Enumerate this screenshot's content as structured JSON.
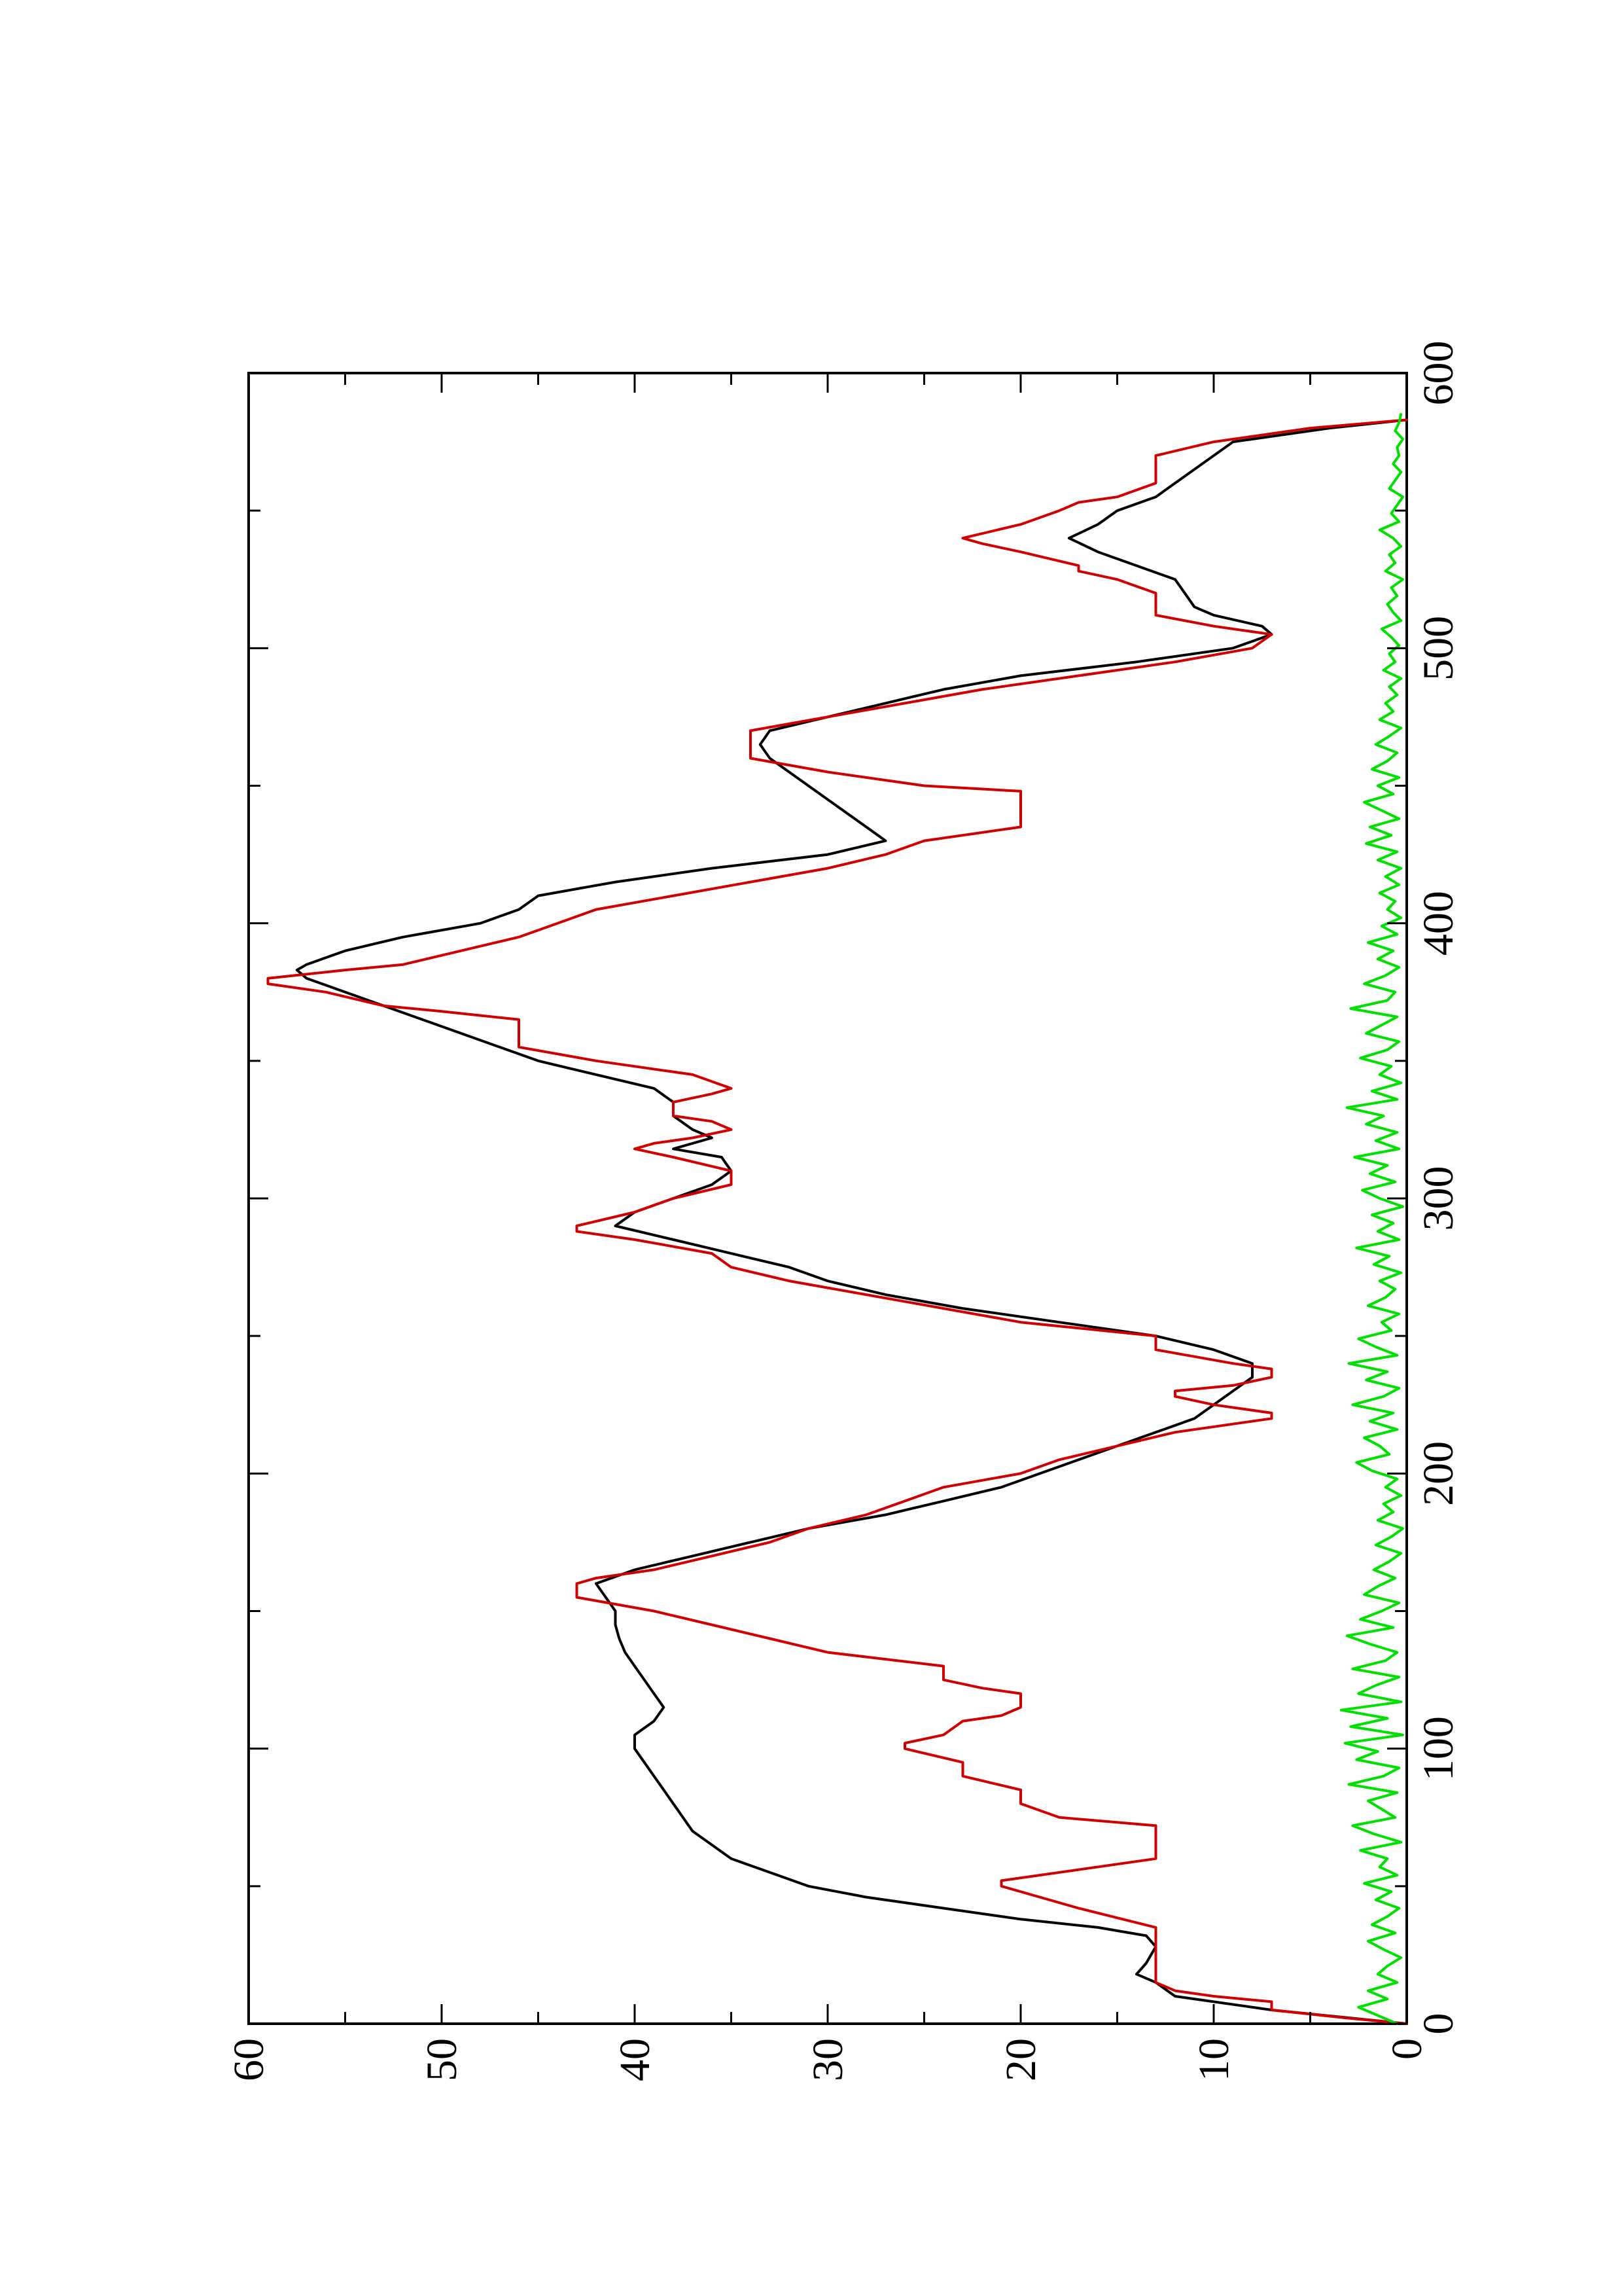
{
  "chart_data": {
    "type": "line",
    "title": "",
    "xlabel": "",
    "ylabel": "",
    "orientation": "rotated-90-ccw",
    "xlim": [
      0,
      600
    ],
    "ylim": [
      0,
      60
    ],
    "x_ticks": [
      0,
      100,
      200,
      300,
      400,
      500,
      600
    ],
    "y_ticks": [
      0,
      10,
      20,
      30,
      40,
      50,
      60
    ],
    "x_tick_labels": [
      "0",
      "100",
      "200",
      "300",
      "400",
      "500",
      "600"
    ],
    "y_tick_labels": [
      "0",
      "10",
      "20",
      "30",
      "40",
      "50",
      "60"
    ],
    "x_minor_ticks": [
      50,
      150,
      250,
      350,
      450,
      550
    ],
    "y_minor_ticks": [
      5,
      15,
      25,
      35,
      45,
      55
    ],
    "grid": false,
    "legend": "none",
    "series": [
      {
        "color": "#000000",
        "x": [
          0,
          5,
          10,
          15,
          18,
          22,
          28,
          32,
          35,
          38,
          42,
          46,
          50,
          55,
          60,
          65,
          70,
          75,
          80,
          85,
          90,
          95,
          100,
          105,
          110,
          115,
          120,
          125,
          130,
          135,
          140,
          145,
          150,
          155,
          160,
          165,
          170,
          175,
          180,
          185,
          190,
          195,
          200,
          205,
          210,
          215,
          220,
          225,
          230,
          235,
          240,
          245,
          250,
          255,
          260,
          265,
          270,
          275,
          280,
          285,
          290,
          295,
          300,
          305,
          310,
          315,
          318,
          322,
          325,
          330,
          335,
          340,
          345,
          350,
          355,
          360,
          365,
          370,
          375,
          380,
          383,
          385,
          390,
          395,
          400,
          405,
          410,
          415,
          420,
          425,
          430,
          435,
          440,
          445,
          450,
          455,
          460,
          465,
          470,
          475,
          480,
          485,
          490,
          495,
          500,
          505,
          508,
          512,
          515,
          520,
          525,
          530,
          535,
          540,
          545,
          550,
          555,
          560,
          565,
          570,
          575,
          580,
          583
        ],
        "values": [
          0,
          7,
          12,
          13,
          14,
          13.5,
          13,
          13.5,
          16,
          20,
          24,
          28,
          31,
          33,
          35,
          36,
          37,
          37.5,
          38,
          38.5,
          39,
          39.5,
          40,
          40,
          39,
          38.5,
          39,
          39.5,
          40,
          40.5,
          40.8,
          41,
          41,
          41.5,
          42,
          40,
          37,
          34,
          31,
          27,
          24,
          21,
          19,
          17,
          15,
          13,
          11,
          10,
          9,
          8,
          8,
          10,
          13,
          18,
          23,
          27,
          30,
          32,
          35,
          38,
          41,
          40,
          38,
          36,
          35,
          35.5,
          38,
          36,
          37,
          38,
          38,
          39,
          42,
          45,
          47,
          49,
          51,
          53,
          55,
          57,
          57.5,
          57,
          55,
          52,
          48,
          46,
          45,
          41,
          36,
          30,
          27,
          28,
          29,
          30,
          31,
          32,
          33,
          33.5,
          33,
          30,
          27,
          24,
          20,
          14,
          9,
          7,
          7.5,
          10,
          11,
          11.5,
          12,
          14,
          16,
          17.5,
          16,
          15,
          13,
          12,
          11,
          10,
          9,
          4,
          0
        ]
      },
      {
        "color": "#d10000",
        "x": [
          0,
          2,
          5,
          8,
          10,
          12,
          15,
          18,
          25,
          35,
          42,
          50,
          52,
          60,
          65,
          70,
          72,
          75,
          80,
          85,
          90,
          95,
          100,
          102,
          105,
          110,
          112,
          115,
          120,
          122,
          125,
          130,
          135,
          140,
          145,
          150,
          155,
          160,
          162,
          165,
          170,
          175,
          180,
          185,
          190,
          195,
          200,
          205,
          210,
          215,
          218,
          220,
          222,
          225,
          228,
          230,
          232,
          235,
          238,
          240,
          245,
          250,
          255,
          260,
          265,
          270,
          275,
          280,
          285,
          288,
          290,
          295,
          300,
          305,
          308,
          310,
          315,
          318,
          320,
          322,
          325,
          328,
          330,
          335,
          338,
          340,
          345,
          350,
          355,
          360,
          365,
          368,
          370,
          375,
          378,
          380,
          383,
          385,
          390,
          395,
          400,
          405,
          410,
          415,
          420,
          425,
          430,
          435,
          440,
          445,
          448,
          450,
          455,
          460,
          465,
          470,
          475,
          480,
          485,
          490,
          495,
          500,
          505,
          508,
          512,
          515,
          520,
          525,
          528,
          530,
          535,
          538,
          540,
          545,
          550,
          553,
          555,
          560,
          565,
          570,
          575,
          580,
          583
        ],
        "values": [
          0,
          3,
          7,
          7,
          10,
          12,
          13,
          13,
          13,
          13,
          17,
          21,
          21,
          13,
          13,
          13,
          13,
          18,
          20,
          20,
          23,
          23,
          26,
          26,
          24,
          23,
          21,
          20,
          20,
          22,
          24,
          24,
          30,
          33,
          36,
          39,
          43,
          43,
          42,
          39,
          36,
          33,
          31,
          28,
          26,
          24,
          20,
          18,
          15,
          12,
          9,
          7,
          7,
          10,
          12,
          12,
          9,
          7,
          7,
          9,
          13,
          13,
          20,
          24,
          28,
          32,
          35,
          36,
          40,
          43,
          43,
          40,
          38,
          35,
          35,
          35,
          38,
          40,
          39,
          37,
          35,
          36,
          38,
          38,
          36,
          35,
          37,
          42,
          46,
          46,
          46,
          50,
          53,
          56,
          59,
          59,
          55,
          52,
          49,
          46,
          44,
          42,
          38,
          34,
          30,
          27,
          25,
          20,
          20,
          20,
          20,
          25,
          30,
          34,
          34,
          34,
          30,
          26,
          22,
          17,
          12,
          8,
          7,
          10,
          13,
          13,
          13,
          15,
          17,
          17,
          20,
          22,
          23,
          20,
          18,
          17,
          15,
          13,
          13,
          13,
          10,
          5,
          0
        ]
      },
      {
        "color": "#00e000",
        "x": [
          0,
          3,
          6,
          9,
          12,
          15,
          18,
          21,
          24,
          27,
          30,
          33,
          36,
          39,
          42,
          45,
          48,
          51,
          54,
          57,
          60,
          63,
          66,
          69,
          72,
          75,
          78,
          81,
          84,
          87,
          90,
          93,
          96,
          99,
          102,
          105,
          108,
          111,
          114,
          117,
          120,
          123,
          126,
          129,
          132,
          135,
          138,
          141,
          144,
          147,
          150,
          153,
          156,
          159,
          162,
          165,
          168,
          171,
          174,
          177,
          180,
          183,
          186,
          189,
          192,
          195,
          198,
          201,
          204,
          207,
          210,
          213,
          216,
          219,
          222,
          225,
          228,
          231,
          234,
          237,
          240,
          243,
          246,
          249,
          252,
          255,
          258,
          261,
          264,
          267,
          270,
          273,
          276,
          279,
          282,
          285,
          288,
          291,
          294,
          297,
          300,
          303,
          306,
          309,
          312,
          315,
          318,
          321,
          324,
          327,
          330,
          333,
          336,
          339,
          342,
          345,
          348,
          351,
          354,
          357,
          360,
          363,
          366,
          369,
          372,
          375,
          378,
          381,
          384,
          387,
          390,
          393,
          396,
          399,
          402,
          405,
          408,
          411,
          414,
          417,
          420,
          423,
          426,
          429,
          432,
          435,
          438,
          441,
          444,
          447,
          450,
          453,
          456,
          459,
          462,
          465,
          468,
          471,
          474,
          477,
          480,
          483,
          486,
          489,
          492,
          495,
          498,
          501,
          504,
          507,
          510,
          513,
          516,
          519,
          522,
          525,
          528,
          531,
          534,
          537,
          540,
          543,
          546,
          549,
          552,
          555,
          558,
          561,
          564,
          567,
          570,
          573,
          576,
          579,
          582,
          585
        ],
        "values": [
          0.5,
          1.5,
          2.5,
          1,
          2,
          0.5,
          1.5,
          1,
          0.3,
          1.2,
          2,
          0.6,
          1.8,
          1,
          0.4,
          1.6,
          0.8,
          2.2,
          0.5,
          1.4,
          1,
          2.4,
          0.3,
          1.7,
          2.8,
          0.6,
          1.3,
          2,
          0.5,
          3,
          1.2,
          0.4,
          2.6,
          1.5,
          3.2,
          0.2,
          2.9,
          1,
          3.4,
          0.3,
          2.5,
          1.6,
          0.4,
          2.8,
          1.1,
          0.5,
          1.9,
          3.1,
          0.7,
          2.4,
          1.3,
          0.4,
          2.2,
          1.5,
          0.6,
          1.7,
          0.9,
          0.3,
          1.6,
          0.8,
          0.2,
          1.5,
          0.7,
          1.2,
          0.3,
          1.1,
          0.5,
          1.8,
          2.6,
          0.9,
          1.4,
          2.2,
          0.5,
          1.9,
          0.7,
          2.8,
          1.2,
          0.4,
          2.1,
          1,
          3,
          0.5,
          1.6,
          2.5,
          0.8,
          1.3,
          0.4,
          2,
          1.1,
          0.6,
          1.4,
          0.3,
          1.7,
          0.9,
          2.6,
          0.4,
          1.5,
          0.7,
          1.8,
          0.2,
          1.4,
          2.3,
          0.6,
          1.9,
          1,
          2.7,
          0.4,
          1.6,
          0.5,
          2.1,
          1.2,
          3.1,
          0.5,
          1.8,
          0.3,
          1.4,
          0.8,
          2.4,
          1,
          0.4,
          2.1,
          1.3,
          0.5,
          2.9,
          1,
          0.6,
          2.2,
          1.1,
          0.4,
          1.5,
          0.7,
          2,
          0.5,
          1.3,
          0.3,
          1,
          0.6,
          1.4,
          0.4,
          1.1,
          0.3,
          1.5,
          0.5,
          2.1,
          0.8,
          1.9,
          0.4,
          1.3,
          2.2,
          0.7,
          1.5,
          0.4,
          1.8,
          1,
          0.5,
          1.6,
          0.9,
          0.3,
          1.4,
          0.7,
          1.1,
          0.5,
          0.9,
          0.3,
          1.2,
          0.6,
          0.9,
          0.4,
          0.8,
          1.3,
          0.3,
          0.7,
          1,
          0.5,
          0.8,
          0.2,
          1.1,
          0.6,
          0.9,
          0.3,
          0.7,
          1.4,
          0.4,
          0.8,
          0.5,
          0.2,
          0.9,
          0.6,
          0.3,
          0.7,
          0.4,
          0.5,
          0.2,
          0.6,
          0.4,
          0.3
        ]
      }
    ]
  }
}
